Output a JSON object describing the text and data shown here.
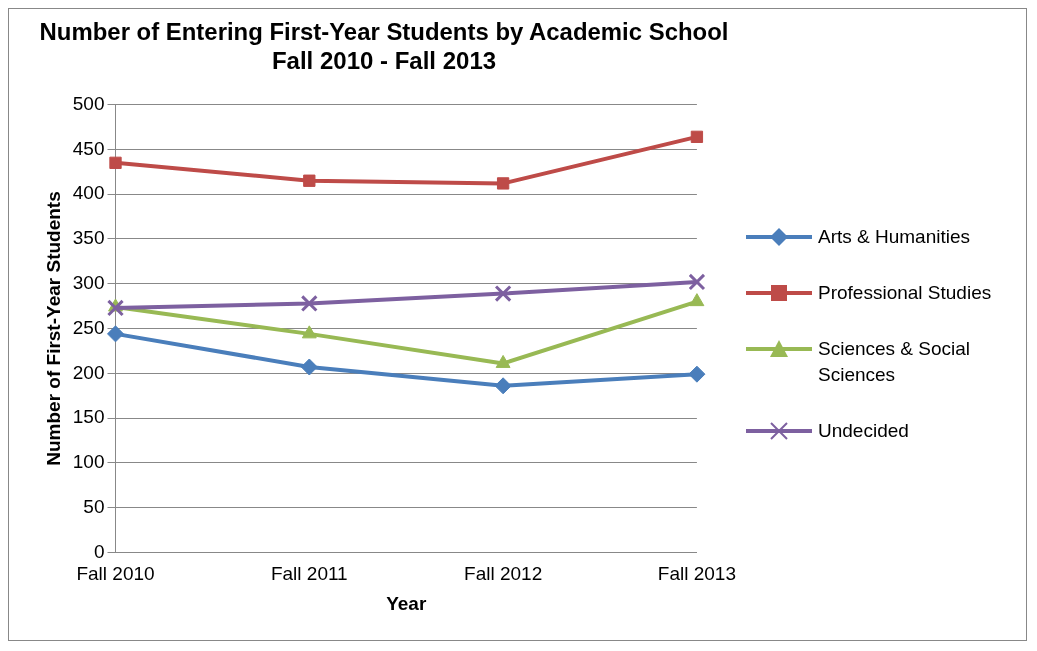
{
  "chart_data": {
    "type": "line",
    "title": [
      "Number of Entering First-Year Students by Academic School",
      "Fall 2010 - Fall 2013"
    ],
    "xlabel": "Year",
    "ylabel": "Number of First-Year Students",
    "categories": [
      "Fall 2010",
      "Fall 2011",
      "Fall 2012",
      "Fall 2013"
    ],
    "series": [
      {
        "name": "Arts & Humanities",
        "color": "#4a7ebb",
        "marker": "diamond",
        "values": [
          244,
          207,
          186,
          199
        ]
      },
      {
        "name": "Professional Studies",
        "color": "#be4b48",
        "marker": "square",
        "values": [
          435,
          415,
          412,
          464
        ]
      },
      {
        "name": "Sciences & Social Sciences",
        "color": "#98b954",
        "marker": "triangle",
        "values": [
          274,
          244,
          211,
          280
        ]
      },
      {
        "name": "Undecided",
        "color": "#7d60a0",
        "marker": "cross",
        "values": [
          273,
          278,
          289,
          302
        ]
      }
    ],
    "ylim": [
      0,
      500
    ],
    "yticks": [
      0,
      50,
      100,
      150,
      200,
      250,
      300,
      350,
      400,
      450,
      500
    ],
    "grid": "y",
    "legend": "right"
  }
}
